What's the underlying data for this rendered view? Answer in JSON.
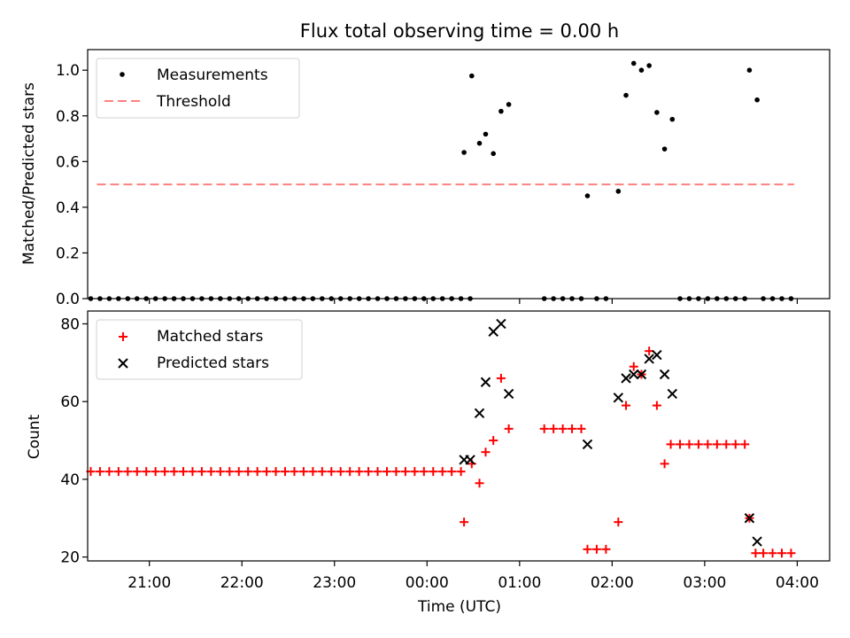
{
  "title": "Flux total observing time = 0.00 h",
  "chart_data": [
    {
      "type": "scatter",
      "ylabel": "Matched/Predicted stars",
      "xlim": [
        "20:20",
        "04:21"
      ],
      "ylim": [
        0,
        1.09
      ],
      "yticks": [
        {
          "v": 0.0,
          "label": "0.0"
        },
        {
          "v": 0.2,
          "label": "0.2"
        },
        {
          "v": 0.4,
          "label": "0.4"
        },
        {
          "v": 0.6,
          "label": "0.6"
        },
        {
          "v": 0.8,
          "label": "0.8"
        },
        {
          "v": 1.0,
          "label": "1.0"
        }
      ],
      "legend_position": "top-left",
      "threshold": {
        "name": "Threshold",
        "value": 0.5,
        "x_start": "20:26",
        "x_end": "03:58",
        "color": "#ff8080"
      },
      "series": [
        {
          "name": "Measurements",
          "color": "#000000",
          "points": [
            [
              "20:22",
              0
            ],
            [
              "20:28",
              0
            ],
            [
              "20:34",
              0
            ],
            [
              "20:40",
              0
            ],
            [
              "20:46",
              0
            ],
            [
              "20:52",
              0
            ],
            [
              "20:58",
              0
            ],
            [
              "21:04",
              0
            ],
            [
              "21:10",
              0
            ],
            [
              "21:16",
              0
            ],
            [
              "21:22",
              0
            ],
            [
              "21:28",
              0
            ],
            [
              "21:34",
              0
            ],
            [
              "21:40",
              0
            ],
            [
              "21:46",
              0
            ],
            [
              "21:52",
              0
            ],
            [
              "21:58",
              0
            ],
            [
              "22:04",
              0
            ],
            [
              "22:10",
              0
            ],
            [
              "22:16",
              0
            ],
            [
              "22:22",
              0
            ],
            [
              "22:28",
              0
            ],
            [
              "22:34",
              0
            ],
            [
              "22:40",
              0
            ],
            [
              "22:46",
              0
            ],
            [
              "22:52",
              0
            ],
            [
              "22:58",
              0
            ],
            [
              "23:04",
              0
            ],
            [
              "23:10",
              0
            ],
            [
              "23:16",
              0
            ],
            [
              "23:22",
              0
            ],
            [
              "23:28",
              0
            ],
            [
              "23:34",
              0
            ],
            [
              "23:40",
              0
            ],
            [
              "23:46",
              0
            ],
            [
              "23:52",
              0
            ],
            [
              "23:58",
              0
            ],
            [
              "00:04",
              0
            ],
            [
              "00:10",
              0
            ],
            [
              "00:16",
              0
            ],
            [
              "00:22",
              0
            ],
            [
              "00:28",
              0
            ],
            [
              "00:24",
              0.64
            ],
            [
              "00:29",
              0.975
            ],
            [
              "00:34",
              0.68
            ],
            [
              "00:38",
              0.72
            ],
            [
              "00:43",
              0.635
            ],
            [
              "00:48",
              0.82
            ],
            [
              "00:53",
              0.85
            ],
            [
              "01:16",
              0
            ],
            [
              "01:22",
              0
            ],
            [
              "01:28",
              0
            ],
            [
              "01:34",
              0
            ],
            [
              "01:40",
              0
            ],
            [
              "01:44",
              0.45
            ],
            [
              "01:50",
              0
            ],
            [
              "01:56",
              0
            ],
            [
              "02:04",
              0.47
            ],
            [
              "02:09",
              0.89
            ],
            [
              "02:14",
              1.03
            ],
            [
              "02:19",
              1.0
            ],
            [
              "02:24",
              1.02
            ],
            [
              "02:29",
              0.815
            ],
            [
              "02:34",
              0.655
            ],
            [
              "02:39",
              0.785
            ],
            [
              "02:44",
              0
            ],
            [
              "02:50",
              0
            ],
            [
              "02:56",
              0
            ],
            [
              "03:02",
              0
            ],
            [
              "03:08",
              0
            ],
            [
              "03:14",
              0
            ],
            [
              "03:20",
              0
            ],
            [
              "03:26",
              0
            ],
            [
              "03:29",
              1.0
            ],
            [
              "03:34",
              0.87
            ],
            [
              "03:38",
              0
            ],
            [
              "03:44",
              0
            ],
            [
              "03:50",
              0
            ],
            [
              "03:56",
              0
            ]
          ]
        }
      ]
    },
    {
      "type": "scatter",
      "xlabel": "Time (UTC)",
      "ylabel": "Count",
      "xlim": [
        "20:20",
        "04:21"
      ],
      "ylim": [
        19,
        83.3
      ],
      "xticks": [
        "21:00",
        "22:00",
        "23:00",
        "00:00",
        "01:00",
        "02:00",
        "03:00",
        "04:00"
      ],
      "yticks": [
        {
          "v": 20,
          "label": "20"
        },
        {
          "v": 40,
          "label": "40"
        },
        {
          "v": 60,
          "label": "60"
        },
        {
          "v": 80,
          "label": "80"
        }
      ],
      "legend_position": "top-left",
      "series": [
        {
          "name": "Matched stars",
          "marker": "plus",
          "color": "#ff0000",
          "points": [
            [
              "20:22",
              42
            ],
            [
              "20:28",
              42
            ],
            [
              "20:34",
              42
            ],
            [
              "20:40",
              42
            ],
            [
              "20:46",
              42
            ],
            [
              "20:52",
              42
            ],
            [
              "20:58",
              42
            ],
            [
              "21:04",
              42
            ],
            [
              "21:10",
              42
            ],
            [
              "21:16",
              42
            ],
            [
              "21:22",
              42
            ],
            [
              "21:28",
              42
            ],
            [
              "21:34",
              42
            ],
            [
              "21:40",
              42
            ],
            [
              "21:46",
              42
            ],
            [
              "21:52",
              42
            ],
            [
              "21:58",
              42
            ],
            [
              "22:04",
              42
            ],
            [
              "22:10",
              42
            ],
            [
              "22:16",
              42
            ],
            [
              "22:22",
              42
            ],
            [
              "22:28",
              42
            ],
            [
              "22:34",
              42
            ],
            [
              "22:40",
              42
            ],
            [
              "22:46",
              42
            ],
            [
              "22:52",
              42
            ],
            [
              "22:58",
              42
            ],
            [
              "23:04",
              42
            ],
            [
              "23:10",
              42
            ],
            [
              "23:16",
              42
            ],
            [
              "23:22",
              42
            ],
            [
              "23:28",
              42
            ],
            [
              "23:34",
              42
            ],
            [
              "23:40",
              42
            ],
            [
              "23:46",
              42
            ],
            [
              "23:52",
              42
            ],
            [
              "23:58",
              42
            ],
            [
              "00:04",
              42
            ],
            [
              "00:10",
              42
            ],
            [
              "00:16",
              42
            ],
            [
              "00:22",
              42
            ],
            [
              "00:24",
              29
            ],
            [
              "00:29",
              44
            ],
            [
              "00:34",
              39
            ],
            [
              "00:38",
              47
            ],
            [
              "00:43",
              50
            ],
            [
              "00:48",
              66
            ],
            [
              "00:53",
              53
            ],
            [
              "01:16",
              53
            ],
            [
              "01:22",
              53
            ],
            [
              "01:28",
              53
            ],
            [
              "01:34",
              53
            ],
            [
              "01:40",
              53
            ],
            [
              "01:44",
              22
            ],
            [
              "01:50",
              22
            ],
            [
              "01:56",
              22
            ],
            [
              "02:04",
              29
            ],
            [
              "02:09",
              59
            ],
            [
              "02:14",
              69
            ],
            [
              "02:19",
              67
            ],
            [
              "02:24",
              73
            ],
            [
              "02:29",
              59
            ],
            [
              "02:34",
              44
            ],
            [
              "02:38",
              49
            ],
            [
              "02:44",
              49
            ],
            [
              "02:50",
              49
            ],
            [
              "02:56",
              49
            ],
            [
              "03:02",
              49
            ],
            [
              "03:08",
              49
            ],
            [
              "03:14",
              49
            ],
            [
              "03:20",
              49
            ],
            [
              "03:26",
              49
            ],
            [
              "03:29",
              30
            ],
            [
              "03:33",
              21
            ],
            [
              "03:38",
              21
            ],
            [
              "03:44",
              21
            ],
            [
              "03:50",
              21
            ],
            [
              "03:56",
              21
            ]
          ]
        },
        {
          "name": "Predicted stars",
          "marker": "x",
          "color": "#000000",
          "points": [
            [
              "00:24",
              45
            ],
            [
              "00:28",
              45
            ],
            [
              "00:34",
              57
            ],
            [
              "00:38",
              65
            ],
            [
              "00:43",
              78
            ],
            [
              "00:48",
              80
            ],
            [
              "00:53",
              62
            ],
            [
              "01:44",
              49
            ],
            [
              "02:04",
              61
            ],
            [
              "02:09",
              66
            ],
            [
              "02:14",
              67
            ],
            [
              "02:19",
              67
            ],
            [
              "02:24",
              71
            ],
            [
              "02:29",
              72
            ],
            [
              "02:34",
              67
            ],
            [
              "02:39",
              62
            ],
            [
              "03:29",
              30
            ],
            [
              "03:34",
              24
            ]
          ]
        }
      ]
    }
  ]
}
